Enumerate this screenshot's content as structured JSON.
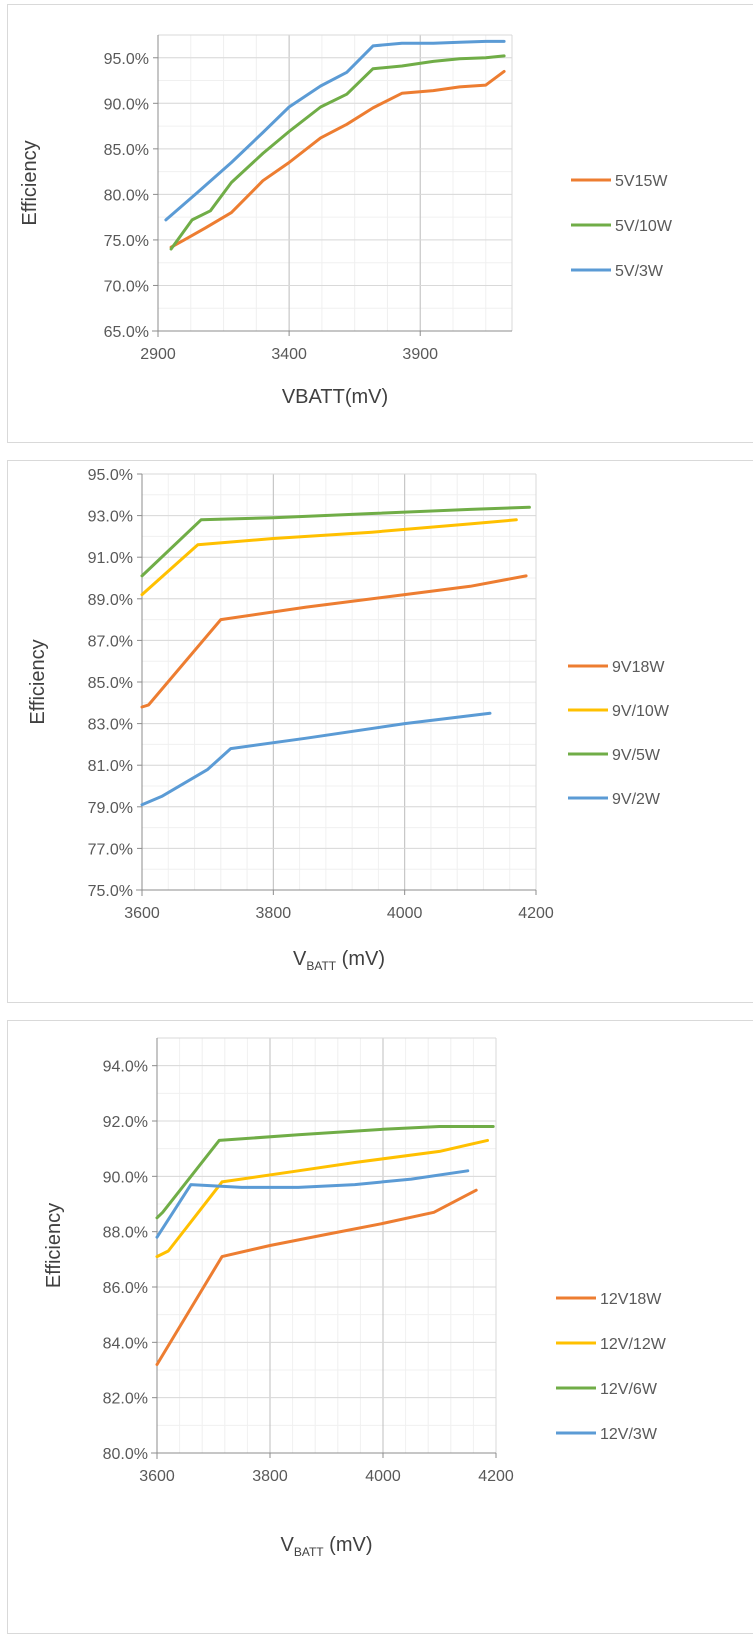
{
  "chart_data": [
    {
      "type": "line",
      "xlabel": "VBATT(mV)",
      "ylabel": "Efficiency",
      "xlim": [
        2900,
        4250
      ],
      "ylim": [
        65,
        97.5
      ],
      "x_ticks": [
        2900,
        3400,
        3900
      ],
      "y_ticks": [
        65,
        70,
        75,
        80,
        85,
        90,
        95
      ],
      "y_tick_labels": [
        "65.0%",
        "70.0%",
        "75.0%",
        "80.0%",
        "85.0%",
        "90.0%",
        "95.0%"
      ],
      "legend_position": "right",
      "grid": true,
      "series": [
        {
          "name": "5V15W",
          "color": "#ED7D31",
          "x": [
            2950,
            3000,
            3080,
            3180,
            3300,
            3400,
            3520,
            3620,
            3720,
            3830,
            3950,
            4050,
            4150,
            4220
          ],
          "y": [
            74.2,
            75.0,
            76.3,
            78.0,
            81.5,
            83.5,
            86.2,
            87.7,
            89.5,
            91.1,
            91.4,
            91.8,
            92.0,
            93.5
          ]
        },
        {
          "name": "5V/10W",
          "color": "#70AD47",
          "x": [
            2950,
            3030,
            3100,
            3180,
            3300,
            3400,
            3520,
            3620,
            3720,
            3830,
            3950,
            4050,
            4150,
            4220
          ],
          "y": [
            74.0,
            77.2,
            78.2,
            81.3,
            84.5,
            86.9,
            89.6,
            91.0,
            93.8,
            94.1,
            94.6,
            94.9,
            95.0,
            95.2
          ]
        },
        {
          "name": "5V/3W",
          "color": "#5B9BD5",
          "x": [
            2930,
            3050,
            3180,
            3300,
            3400,
            3520,
            3620,
            3720,
            3830,
            3950,
            4050,
            4150,
            4220
          ],
          "y": [
            77.2,
            80.2,
            83.5,
            86.8,
            89.6,
            91.9,
            93.4,
            96.3,
            96.6,
            96.6,
            96.7,
            96.8,
            96.8
          ]
        }
      ]
    },
    {
      "type": "line",
      "xlabel_main": "V",
      "xlabel_sub": "BATT",
      "xlabel_unit": " (mV)",
      "ylabel": "Efficiency",
      "xlim": [
        3600,
        4200
      ],
      "ylim": [
        75,
        95
      ],
      "x_ticks": [
        3600,
        3800,
        4000,
        4200
      ],
      "y_ticks": [
        75,
        77,
        79,
        81,
        83,
        85,
        87,
        89,
        91,
        93,
        95
      ],
      "y_tick_labels": [
        "75.0%",
        "77.0%",
        "79.0%",
        "81.0%",
        "83.0%",
        "85.0%",
        "87.0%",
        "89.0%",
        "91.0%",
        "93.0%",
        "95.0%"
      ],
      "legend_position": "right",
      "grid": true,
      "series": [
        {
          "name": "9V18W",
          "color": "#ED7D31",
          "x": [
            3600,
            3610,
            3720,
            3850,
            4000,
            4100,
            4185
          ],
          "y": [
            83.8,
            83.9,
            88.0,
            88.6,
            89.2,
            89.6,
            90.1
          ]
        },
        {
          "name": "9V/10W",
          "color": "#FFC000",
          "x": [
            3600,
            3685,
            3800,
            3950,
            4100,
            4170
          ],
          "y": [
            89.2,
            91.6,
            91.9,
            92.2,
            92.6,
            92.8
          ]
        },
        {
          "name": "9V/5W",
          "color": "#70AD47",
          "x": [
            3600,
            3690,
            3800,
            3950,
            4100,
            4190
          ],
          "y": [
            90.1,
            92.8,
            92.9,
            93.1,
            93.3,
            93.4
          ]
        },
        {
          "name": "9V/2W",
          "color": "#5B9BD5",
          "x": [
            3600,
            3630,
            3700,
            3735,
            3850,
            4000,
            4130
          ],
          "y": [
            79.1,
            79.5,
            80.8,
            81.8,
            82.3,
            83.0,
            83.5
          ]
        }
      ]
    },
    {
      "type": "line",
      "xlabel_main": "V",
      "xlabel_sub": "BATT",
      "xlabel_unit": " (mV)",
      "ylabel": "Efficiency",
      "xlim": [
        3600,
        4200
      ],
      "ylim": [
        80,
        95
      ],
      "x_ticks": [
        3600,
        3800,
        4000,
        4200
      ],
      "y_ticks": [
        80,
        82,
        84,
        86,
        88,
        90,
        92,
        94
      ],
      "y_tick_labels": [
        "80.0%",
        "82.0%",
        "84.0%",
        "86.0%",
        "88.0%",
        "90.0%",
        "92.0%",
        "94.0%"
      ],
      "legend_position": "right",
      "grid": true,
      "series": [
        {
          "name": "12V18W",
          "color": "#ED7D31",
          "x": [
            3600,
            3715,
            3800,
            3900,
            4000,
            4090,
            4165
          ],
          "y": [
            83.2,
            87.1,
            87.5,
            87.9,
            88.3,
            88.7,
            89.5
          ]
        },
        {
          "name": "12V/12W",
          "color": "#FFC000",
          "x": [
            3600,
            3620,
            3715,
            3850,
            3950,
            4100,
            4185
          ],
          "y": [
            87.1,
            87.3,
            89.8,
            90.2,
            90.5,
            90.9,
            91.3
          ]
        },
        {
          "name": "12V/6W",
          "color": "#70AD47",
          "x": [
            3600,
            3610,
            3710,
            3850,
            4000,
            4100,
            4195
          ],
          "y": [
            88.5,
            88.7,
            91.3,
            91.5,
            91.7,
            91.8,
            91.8
          ]
        },
        {
          "name": "12V/3W",
          "color": "#5B9BD5",
          "x": [
            3600,
            3660,
            3750,
            3850,
            3950,
            4050,
            4150
          ],
          "y": [
            87.8,
            89.7,
            89.6,
            89.6,
            89.7,
            89.9,
            90.2
          ]
        }
      ]
    }
  ]
}
